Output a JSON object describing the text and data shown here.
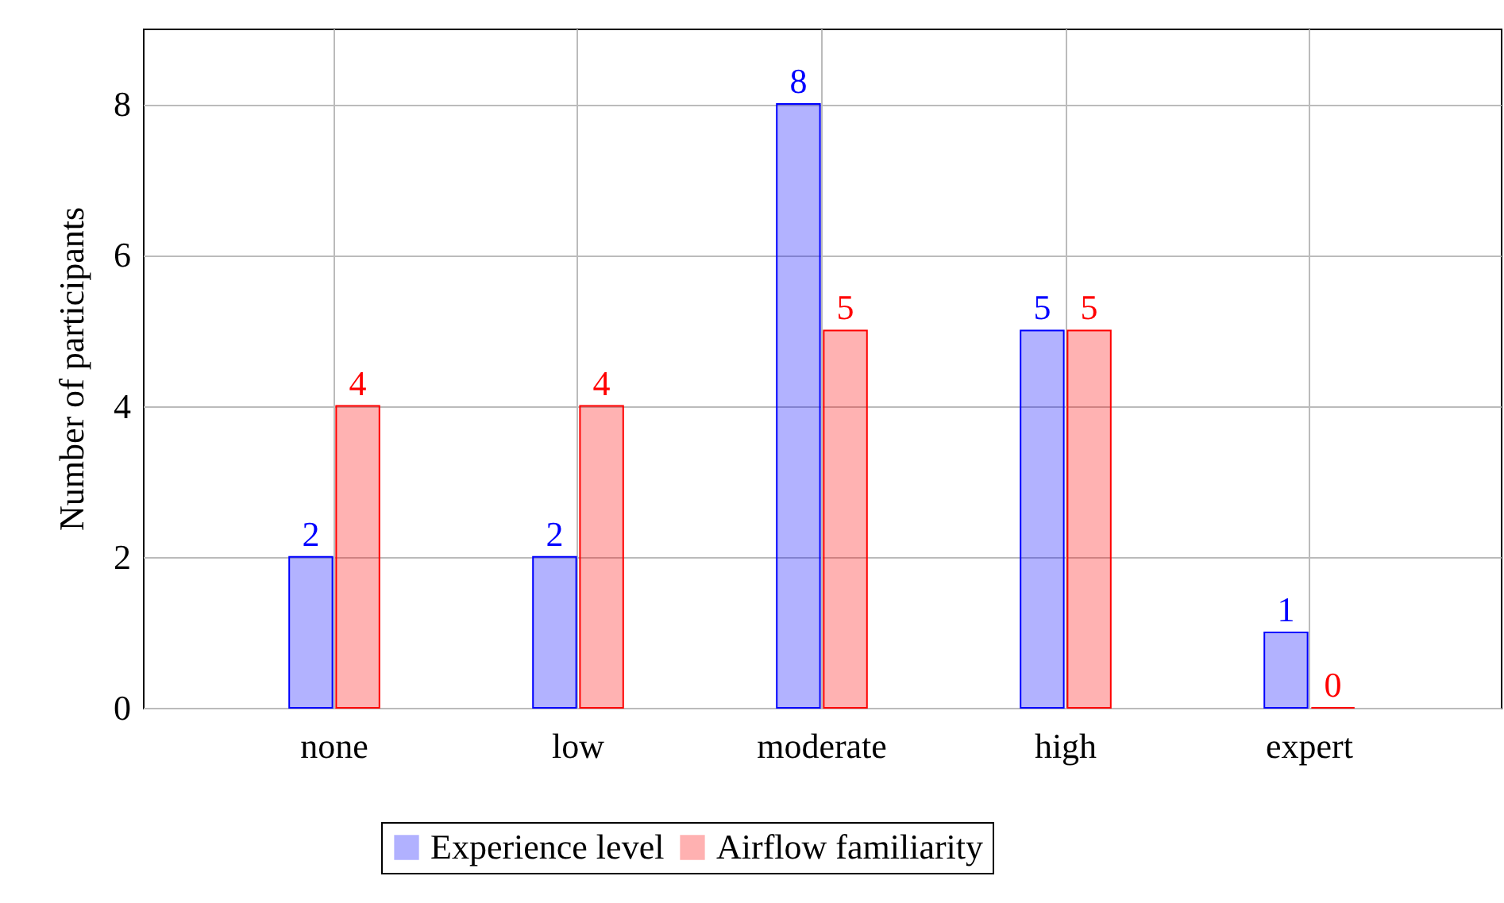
{
  "chart_data": {
    "type": "bar",
    "ylabel": "Number of participants",
    "categories": [
      "none",
      "low",
      "moderate",
      "high",
      "expert"
    ],
    "series": [
      {
        "name": "Experience level",
        "color": "#0000ff",
        "values": [
          2,
          2,
          8,
          5,
          1
        ]
      },
      {
        "name": "Airflow familiarity",
        "color": "#ff0000",
        "values": [
          4,
          4,
          5,
          5,
          0
        ]
      }
    ],
    "ylim": [
      0,
      9
    ],
    "yticks": [
      0,
      2,
      4,
      6,
      8
    ],
    "grid": true,
    "legend": "bottom",
    "data_labels": true
  }
}
